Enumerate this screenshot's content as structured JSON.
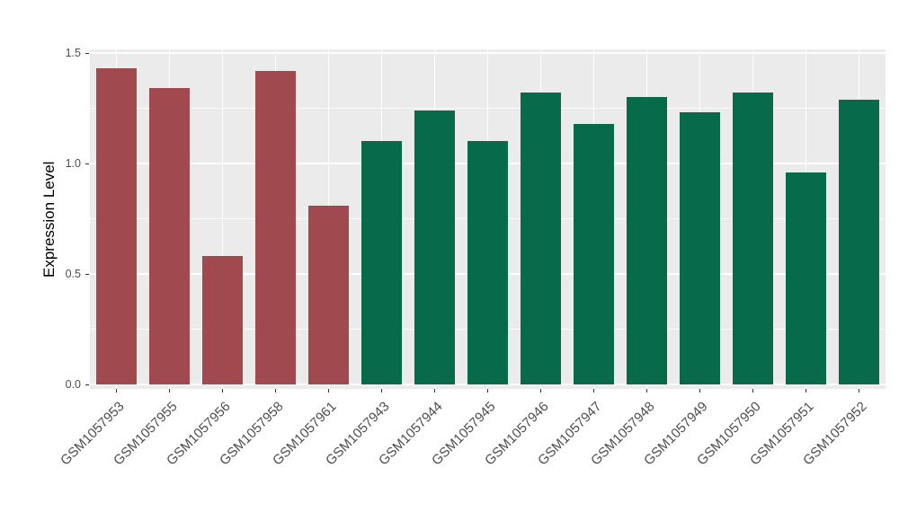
{
  "chart_data": {
    "type": "bar",
    "title": "",
    "xlabel": "",
    "ylabel": "Expression Level",
    "ylim": [
      0,
      1.5
    ],
    "ytick_values": [
      0,
      0.5,
      1.0,
      1.5
    ],
    "ytick_labels": [
      "0.0",
      "0.5",
      "1.0",
      "1.5"
    ],
    "minor_tick_values": [
      0.25,
      0.75,
      1.25
    ],
    "grid": "major and minor horizontal white gridlines, vertical major at categories",
    "legend": "none",
    "categories": [
      "GSM1057953",
      "GSM1057955",
      "GSM1057956",
      "GSM1057958",
      "GSM1057961",
      "GSM1057943",
      "GSM1057944",
      "GSM1057945",
      "GSM1057946",
      "GSM1057947",
      "GSM1057948",
      "GSM1057949",
      "GSM1057950",
      "GSM1057951",
      "GSM1057952"
    ],
    "values": [
      1.43,
      1.34,
      0.58,
      1.42,
      0.81,
      1.1,
      1.24,
      1.1,
      1.32,
      1.18,
      1.3,
      1.23,
      1.32,
      0.96,
      1.29
    ],
    "bar_groups": [
      "red",
      "red",
      "red",
      "red",
      "red",
      "green",
      "green",
      "green",
      "green",
      "green",
      "green",
      "green",
      "green",
      "green",
      "green"
    ],
    "colors": {
      "red": "#A04A50",
      "green": "#066A4B"
    },
    "panel_background": "#EBEBEB",
    "figure_background": "#FFFFFF",
    "tick_label_color": "#4D4D4D",
    "axis_title_color": "#000000",
    "grid_color": "#FFFFFF"
  }
}
